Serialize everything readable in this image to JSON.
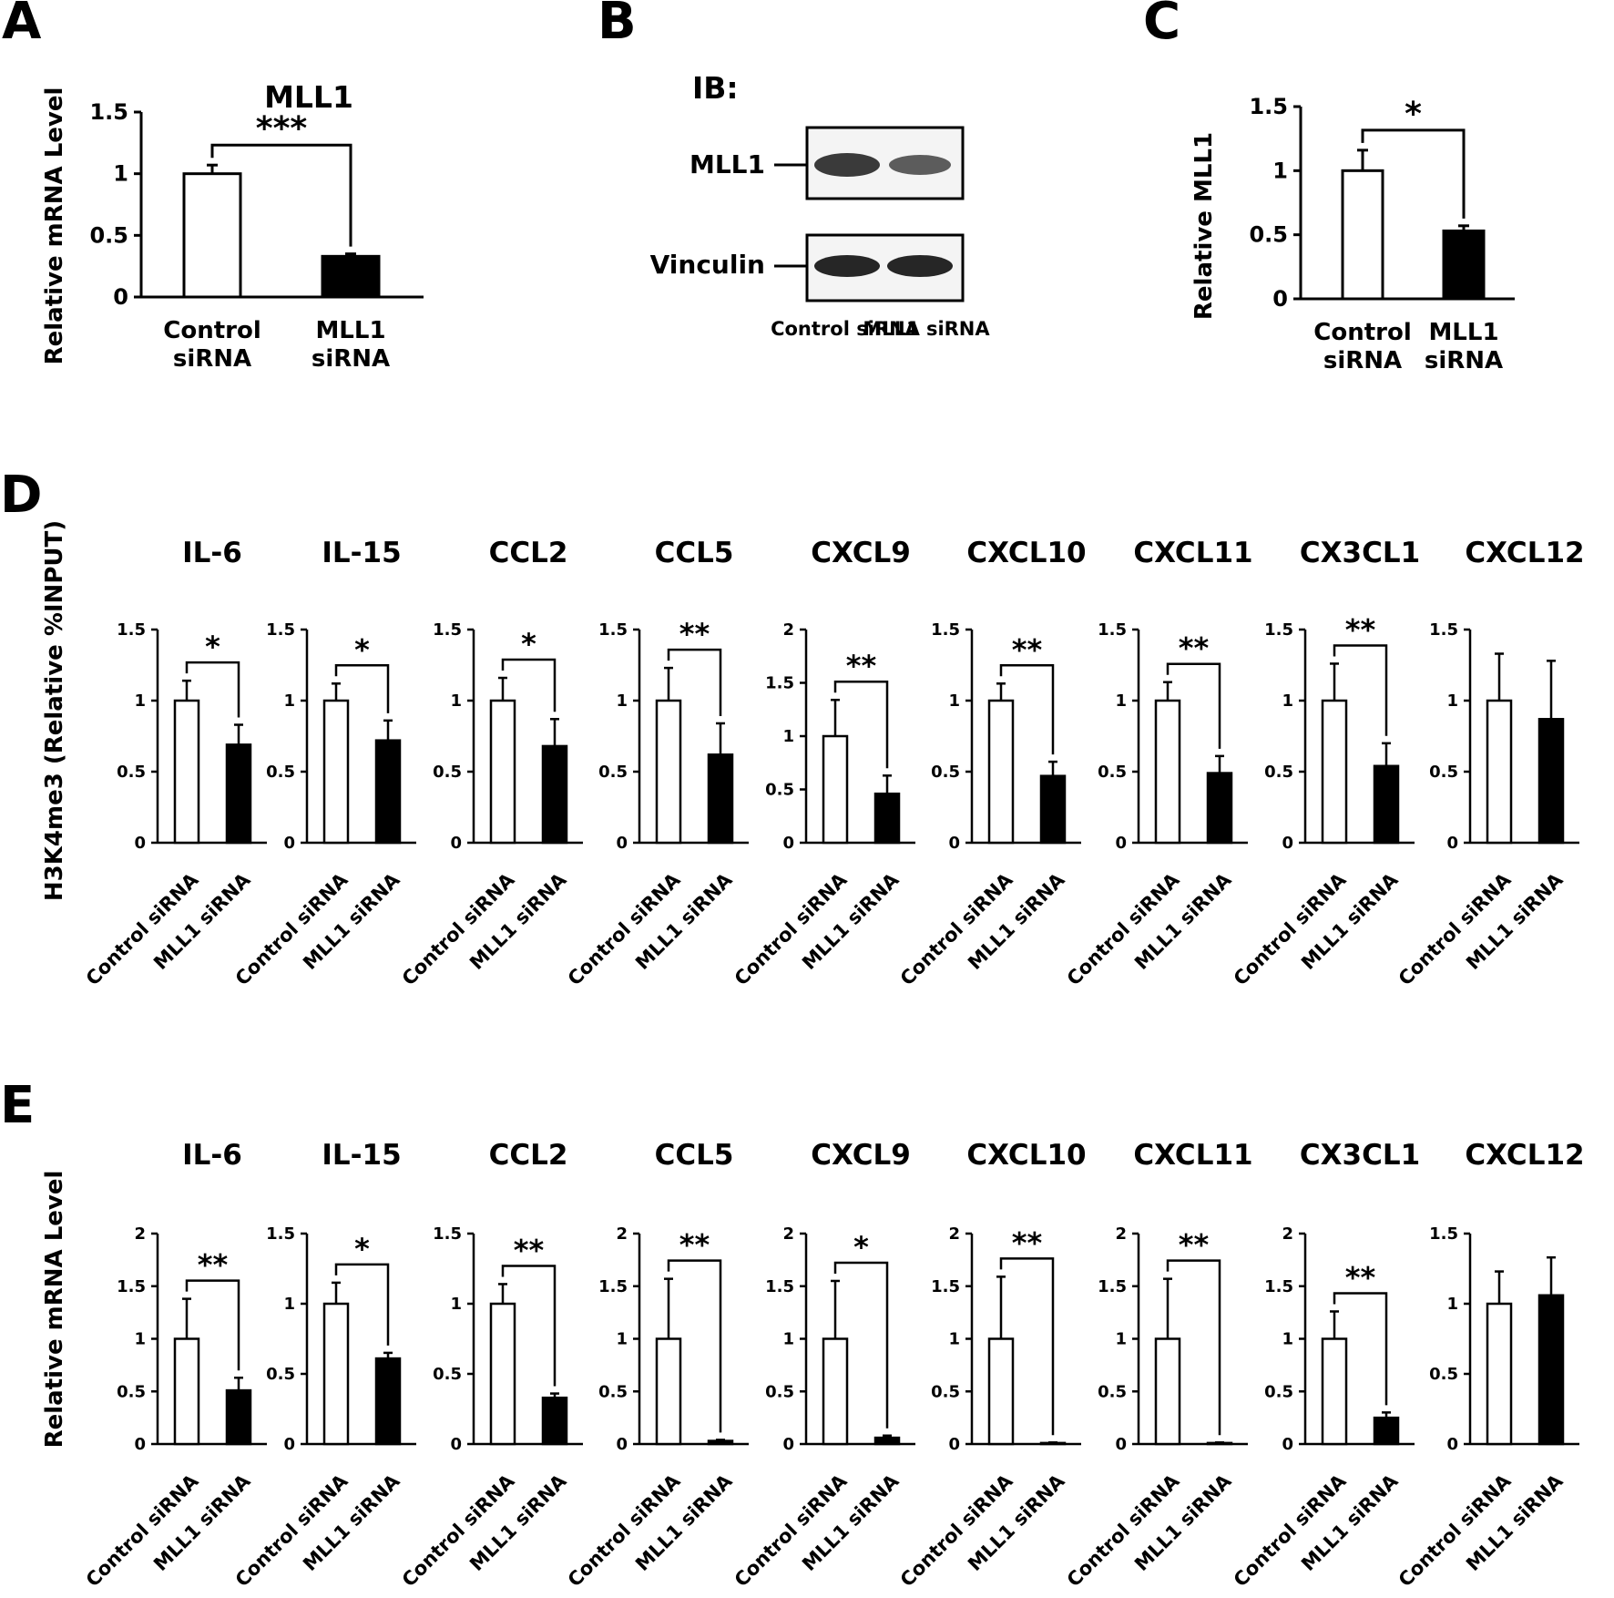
{
  "panels": {
    "A": {
      "letter": "A",
      "title": "MLL1",
      "ylabel": "Relative mRNA Level",
      "significance": "***"
    },
    "B": {
      "letter": "B",
      "ib_label": "IB:",
      "rows": [
        "MLL1",
        "Vinculin"
      ],
      "lanes": [
        "Control siRNA",
        "MLL1 siRNA"
      ]
    },
    "C": {
      "letter": "C",
      "ylabel": "Relative MLL1",
      "significance": "*"
    },
    "D": {
      "letter": "D",
      "ylabel": "H3K4me3  (Relative %INPUT)"
    },
    "E": {
      "letter": "E",
      "ylabel": "Relative mRNA Level"
    }
  },
  "chart_data": [
    {
      "id": "A",
      "type": "bar",
      "title": "MLL1",
      "ylabel": "Relative mRNA Level",
      "categories": [
        "Control siRNA",
        "MLL1 siRNA"
      ],
      "values": [
        1.0,
        0.33
      ],
      "errors": [
        0.07,
        0.02
      ],
      "ylim": [
        0,
        1.5
      ],
      "yticks": [
        "0",
        "0.5",
        "1",
        "1.5"
      ],
      "significance": "***",
      "fills": [
        "#ffffff",
        "#000000"
      ]
    },
    {
      "id": "C",
      "type": "bar",
      "title": "",
      "ylabel": "Relative MLL1",
      "categories": [
        "Control siRNA",
        "MLL1 siRNA"
      ],
      "values": [
        1.0,
        0.53
      ],
      "errors": [
        0.16,
        0.04
      ],
      "ylim": [
        0,
        1.5
      ],
      "yticks": [
        "0",
        "0.5",
        "1",
        "1.5"
      ],
      "significance": "*",
      "fills": [
        "#ffffff",
        "#000000"
      ]
    },
    {
      "id": "D",
      "type": "bar",
      "ylabel": "H3K4me3  (Relative %INPUT)",
      "categories": [
        "Control siRNA",
        "MLL1 siRNA"
      ],
      "subplots": [
        {
          "title": "IL-6",
          "values": [
            1.0,
            0.69
          ],
          "errors": [
            0.14,
            0.14
          ],
          "ylim": [
            0,
            1.5
          ],
          "yticks": [
            "0",
            "0.5",
            "1",
            "1.5"
          ],
          "significance": "*"
        },
        {
          "title": "IL-15",
          "values": [
            1.0,
            0.72
          ],
          "errors": [
            0.12,
            0.14
          ],
          "ylim": [
            0,
            1.5
          ],
          "yticks": [
            "0",
            "0.5",
            "1",
            "1.5"
          ],
          "significance": "*"
        },
        {
          "title": "CCL2",
          "values": [
            1.0,
            0.68
          ],
          "errors": [
            0.16,
            0.19
          ],
          "ylim": [
            0,
            1.5
          ],
          "yticks": [
            "0",
            "0.5",
            "1",
            "1.5"
          ],
          "significance": "*"
        },
        {
          "title": "CCL5",
          "values": [
            1.0,
            0.62
          ],
          "errors": [
            0.23,
            0.22
          ],
          "ylim": [
            0,
            1.5
          ],
          "yticks": [
            "0",
            "0.5",
            "1",
            "1.5"
          ],
          "significance": "**"
        },
        {
          "title": "CXCL9",
          "values": [
            1.0,
            0.46
          ],
          "errors": [
            0.34,
            0.17
          ],
          "ylim": [
            0,
            2
          ],
          "yticks": [
            "0",
            "0.5",
            "1",
            "1.5",
            "2"
          ],
          "significance": "**"
        },
        {
          "title": "CXCL10",
          "values": [
            1.0,
            0.47
          ],
          "errors": [
            0.12,
            0.1
          ],
          "ylim": [
            0,
            1.5
          ],
          "yticks": [
            "0",
            "0.5",
            "1",
            "1.5"
          ],
          "significance": "**"
        },
        {
          "title": "CXCL11",
          "values": [
            1.0,
            0.49
          ],
          "errors": [
            0.13,
            0.12
          ],
          "ylim": [
            0,
            1.5
          ],
          "yticks": [
            "0",
            "0.5",
            "1",
            "1.5"
          ],
          "significance": "**"
        },
        {
          "title": "CX3CL1",
          "values": [
            1.0,
            0.54
          ],
          "errors": [
            0.26,
            0.16
          ],
          "ylim": [
            0,
            1.5
          ],
          "yticks": [
            "0",
            "0.5",
            "1",
            "1.5"
          ],
          "significance": "**"
        },
        {
          "title": "CXCL12",
          "values": [
            1.0,
            0.87
          ],
          "errors": [
            0.33,
            0.41
          ],
          "ylim": [
            0,
            1.5
          ],
          "yticks": [
            "0",
            "0.5",
            "1",
            "1.5"
          ],
          "significance": ""
        }
      ]
    },
    {
      "id": "E",
      "type": "bar",
      "ylabel": "Relative mRNA Level",
      "categories": [
        "Control siRNA",
        "MLL1 siRNA"
      ],
      "subplots": [
        {
          "title": "IL-6",
          "values": [
            1.0,
            0.51
          ],
          "errors": [
            0.38,
            0.12
          ],
          "ylim": [
            0,
            2
          ],
          "yticks": [
            "0",
            "0.5",
            "1",
            "1.5",
            "2"
          ],
          "significance": "**"
        },
        {
          "title": "IL-15",
          "values": [
            1.0,
            0.61
          ],
          "errors": [
            0.15,
            0.04
          ],
          "ylim": [
            0,
            1.5
          ],
          "yticks": [
            "0",
            "0.5",
            "1",
            "1.5"
          ],
          "significance": "*"
        },
        {
          "title": "CCL2",
          "values": [
            1.0,
            0.33
          ],
          "errors": [
            0.14,
            0.03
          ],
          "ylim": [
            0,
            1.5
          ],
          "yticks": [
            "0",
            "0.5",
            "1",
            "1.5"
          ],
          "significance": "**"
        },
        {
          "title": "CCL5",
          "values": [
            1.0,
            0.03
          ],
          "errors": [
            0.57,
            0.01
          ],
          "ylim": [
            0,
            2
          ],
          "yticks": [
            "0",
            "0.5",
            "1",
            "1.5",
            "2"
          ],
          "significance": "**"
        },
        {
          "title": "CXCL9",
          "values": [
            1.0,
            0.06
          ],
          "errors": [
            0.55,
            0.02
          ],
          "ylim": [
            0,
            2
          ],
          "yticks": [
            "0",
            "0.5",
            "1",
            "1.5",
            "2"
          ],
          "significance": "*"
        },
        {
          "title": "CXCL10",
          "values": [
            1.0,
            0.01
          ],
          "errors": [
            0.59,
            0.005
          ],
          "ylim": [
            0,
            2
          ],
          "yticks": [
            "0",
            "0.5",
            "1",
            "1.5",
            "2"
          ],
          "significance": "**"
        },
        {
          "title": "CXCL11",
          "values": [
            1.0,
            0.01
          ],
          "errors": [
            0.57,
            0.005
          ],
          "ylim": [
            0,
            2
          ],
          "yticks": [
            "0",
            "0.5",
            "1",
            "1.5",
            "2"
          ],
          "significance": "**"
        },
        {
          "title": "CX3CL1",
          "values": [
            1.0,
            0.25
          ],
          "errors": [
            0.26,
            0.05
          ],
          "ylim": [
            0,
            2
          ],
          "yticks": [
            "0",
            "0.5",
            "1",
            "1.5",
            "2"
          ],
          "significance": "**"
        },
        {
          "title": "CXCL12",
          "values": [
            1.0,
            1.06
          ],
          "errors": [
            0.23,
            0.27
          ],
          "ylim": [
            0,
            1.5
          ],
          "yticks": [
            "0",
            "0.5",
            "1",
            "1.5"
          ],
          "significance": ""
        }
      ]
    }
  ]
}
